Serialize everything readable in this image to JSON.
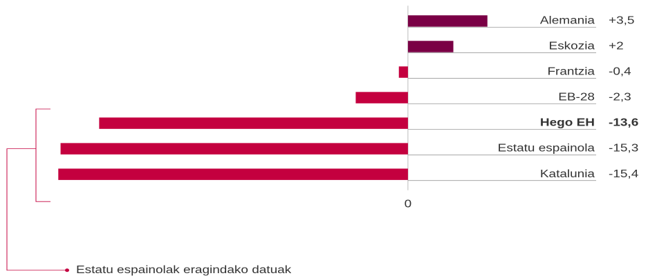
{
  "chart_data": {
    "type": "barh",
    "categories": [
      "Alemania",
      "Eskozia",
      "Frantzia",
      "EB-28",
      "Hego EH",
      "Estatu espainola",
      "Katalunia"
    ],
    "values": [
      3.5,
      2,
      -0.4,
      -2.3,
      -13.6,
      -15.3,
      -15.4
    ],
    "value_labels": [
      "+3,5",
      "+2",
      "-0,4",
      "-2,3",
      "-13,6",
      "-15,3",
      "-15,4"
    ],
    "colors": {
      "positive": "#7a0045",
      "negative": "#c4003f"
    },
    "highlight": 4,
    "xlim": [
      -15.5,
      11
    ],
    "xticks": [
      0
    ],
    "annotation": "Estatu espainolak eragindako datuak"
  }
}
